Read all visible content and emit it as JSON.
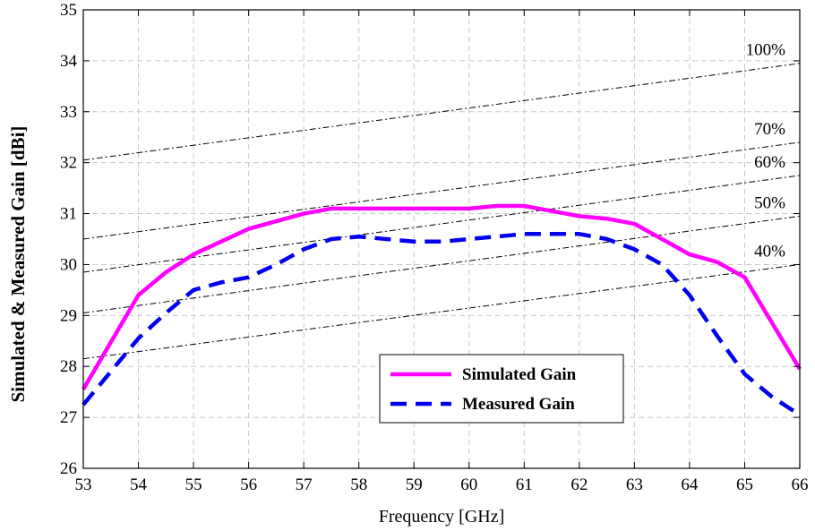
{
  "chart_data": {
    "type": "line",
    "xlabel": "Frequency [GHz]",
    "ylabel": "Simulated & Measured Gain [dBi]",
    "xlim": [
      53,
      66
    ],
    "ylim": [
      26,
      35
    ],
    "xticks": [
      53,
      54,
      55,
      56,
      57,
      58,
      59,
      60,
      61,
      62,
      63,
      64,
      65,
      66
    ],
    "yticks": [
      26,
      27,
      28,
      29,
      30,
      31,
      32,
      33,
      34,
      35
    ],
    "grid": true,
    "legend_position": "bottom-center",
    "series": [
      {
        "name": "Simulated Gain",
        "color": "#ff00ff",
        "style": "solid",
        "x": [
          53,
          54,
          54.5,
          55,
          55.5,
          56,
          56.5,
          57,
          57.5,
          58,
          58.5,
          59,
          59.5,
          60,
          60.5,
          61,
          61.5,
          62,
          62.5,
          63,
          63.5,
          64,
          64.5,
          65,
          65.5,
          66
        ],
        "y": [
          27.55,
          29.4,
          29.85,
          30.2,
          30.45,
          30.7,
          30.85,
          31.0,
          31.1,
          31.1,
          31.1,
          31.1,
          31.1,
          31.1,
          31.15,
          31.15,
          31.05,
          30.95,
          30.9,
          30.8,
          30.5,
          30.2,
          30.05,
          29.75,
          28.85,
          27.95
        ]
      },
      {
        "name": "Measured Gain",
        "color": "#0000ee",
        "style": "dashed",
        "x": [
          53,
          53.5,
          54,
          54.5,
          55,
          55.5,
          56,
          56.5,
          57,
          57.5,
          58,
          58.5,
          59,
          59.5,
          60,
          60.5,
          61,
          61.5,
          62,
          62.5,
          63,
          63.5,
          64,
          64.5,
          65,
          65.5,
          66
        ],
        "y": [
          27.25,
          27.9,
          28.55,
          29.05,
          29.5,
          29.65,
          29.75,
          30.0,
          30.3,
          30.5,
          30.55,
          30.5,
          30.45,
          30.45,
          30.5,
          30.55,
          30.6,
          30.6,
          30.6,
          30.5,
          30.3,
          30.0,
          29.4,
          28.6,
          27.85,
          27.4,
          27.05
        ]
      }
    ],
    "efficiency_lines": [
      {
        "label": "100%",
        "y_start": 32.05,
        "y_end": 33.95
      },
      {
        "label": "70%",
        "y_start": 30.5,
        "y_end": 32.4
      },
      {
        "label": "60%",
        "y_start": 29.85,
        "y_end": 31.75
      },
      {
        "label": "50%",
        "y_start": 29.05,
        "y_end": 30.95
      },
      {
        "label": "40%",
        "y_start": 28.15,
        "y_end": 30.0
      }
    ]
  }
}
